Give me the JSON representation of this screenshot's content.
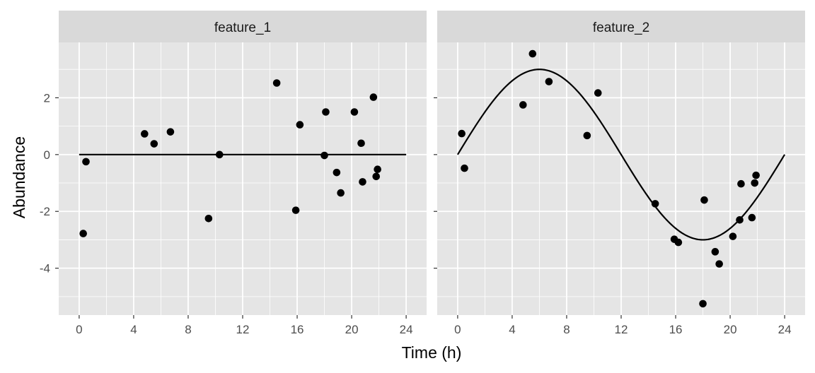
{
  "chart_data": {
    "type": "scatter",
    "xlabel": "Time (h)",
    "ylabel": "Abundance",
    "xlim": [
      -1.5,
      25.5
    ],
    "ylim": [
      -5.65,
      3.95
    ],
    "x_ticks": [
      0,
      4,
      8,
      12,
      16,
      20,
      24
    ],
    "y_ticks": [
      -4,
      -2,
      0,
      2
    ],
    "grid": true,
    "colors": {
      "panel_bg": "#e5e5e5",
      "strip_bg": "#d9d9d9",
      "grid": "#ffffff",
      "points": "#000000",
      "line": "#000000"
    },
    "panels": [
      {
        "title": "feature_1",
        "fit": {
          "type": "sine",
          "amplitude": 0,
          "period": 24,
          "x_range": [
            0,
            24
          ]
        },
        "points": [
          {
            "x": 0.3,
            "y": -2.78
          },
          {
            "x": 0.5,
            "y": -0.25
          },
          {
            "x": 4.8,
            "y": 0.73
          },
          {
            "x": 5.5,
            "y": 0.38
          },
          {
            "x": 6.7,
            "y": 0.8
          },
          {
            "x": 9.5,
            "y": -2.25
          },
          {
            "x": 10.3,
            "y": 0.0
          },
          {
            "x": 14.5,
            "y": 2.52
          },
          {
            "x": 15.9,
            "y": -1.96
          },
          {
            "x": 16.2,
            "y": 1.05
          },
          {
            "x": 18.0,
            "y": -0.03
          },
          {
            "x": 18.1,
            "y": 1.5
          },
          {
            "x": 18.9,
            "y": -0.63
          },
          {
            "x": 19.2,
            "y": -1.35
          },
          {
            "x": 20.2,
            "y": 1.5
          },
          {
            "x": 20.7,
            "y": 0.4
          },
          {
            "x": 20.8,
            "y": -0.96
          },
          {
            "x": 21.6,
            "y": 2.02
          },
          {
            "x": 21.8,
            "y": -0.77
          },
          {
            "x": 21.9,
            "y": -0.52
          }
        ]
      },
      {
        "title": "feature_2",
        "fit": {
          "type": "sine",
          "amplitude": 3,
          "period": 24,
          "x_range": [
            0,
            24
          ]
        },
        "points": [
          {
            "x": 0.3,
            "y": 0.74
          },
          {
            "x": 0.5,
            "y": -0.48
          },
          {
            "x": 4.8,
            "y": 1.75
          },
          {
            "x": 5.5,
            "y": 3.55
          },
          {
            "x": 6.7,
            "y": 2.57
          },
          {
            "x": 9.5,
            "y": 0.67
          },
          {
            "x": 10.3,
            "y": 2.17
          },
          {
            "x": 14.5,
            "y": -1.73
          },
          {
            "x": 15.9,
            "y": -2.98
          },
          {
            "x": 16.2,
            "y": -3.09
          },
          {
            "x": 18.0,
            "y": -5.25
          },
          {
            "x": 18.1,
            "y": -1.6
          },
          {
            "x": 18.9,
            "y": -3.42
          },
          {
            "x": 19.2,
            "y": -3.85
          },
          {
            "x": 20.2,
            "y": -2.88
          },
          {
            "x": 20.7,
            "y": -2.3
          },
          {
            "x": 20.8,
            "y": -1.03
          },
          {
            "x": 21.6,
            "y": -2.22
          },
          {
            "x": 21.8,
            "y": -1.0
          },
          {
            "x": 21.9,
            "y": -0.73
          }
        ]
      }
    ]
  }
}
